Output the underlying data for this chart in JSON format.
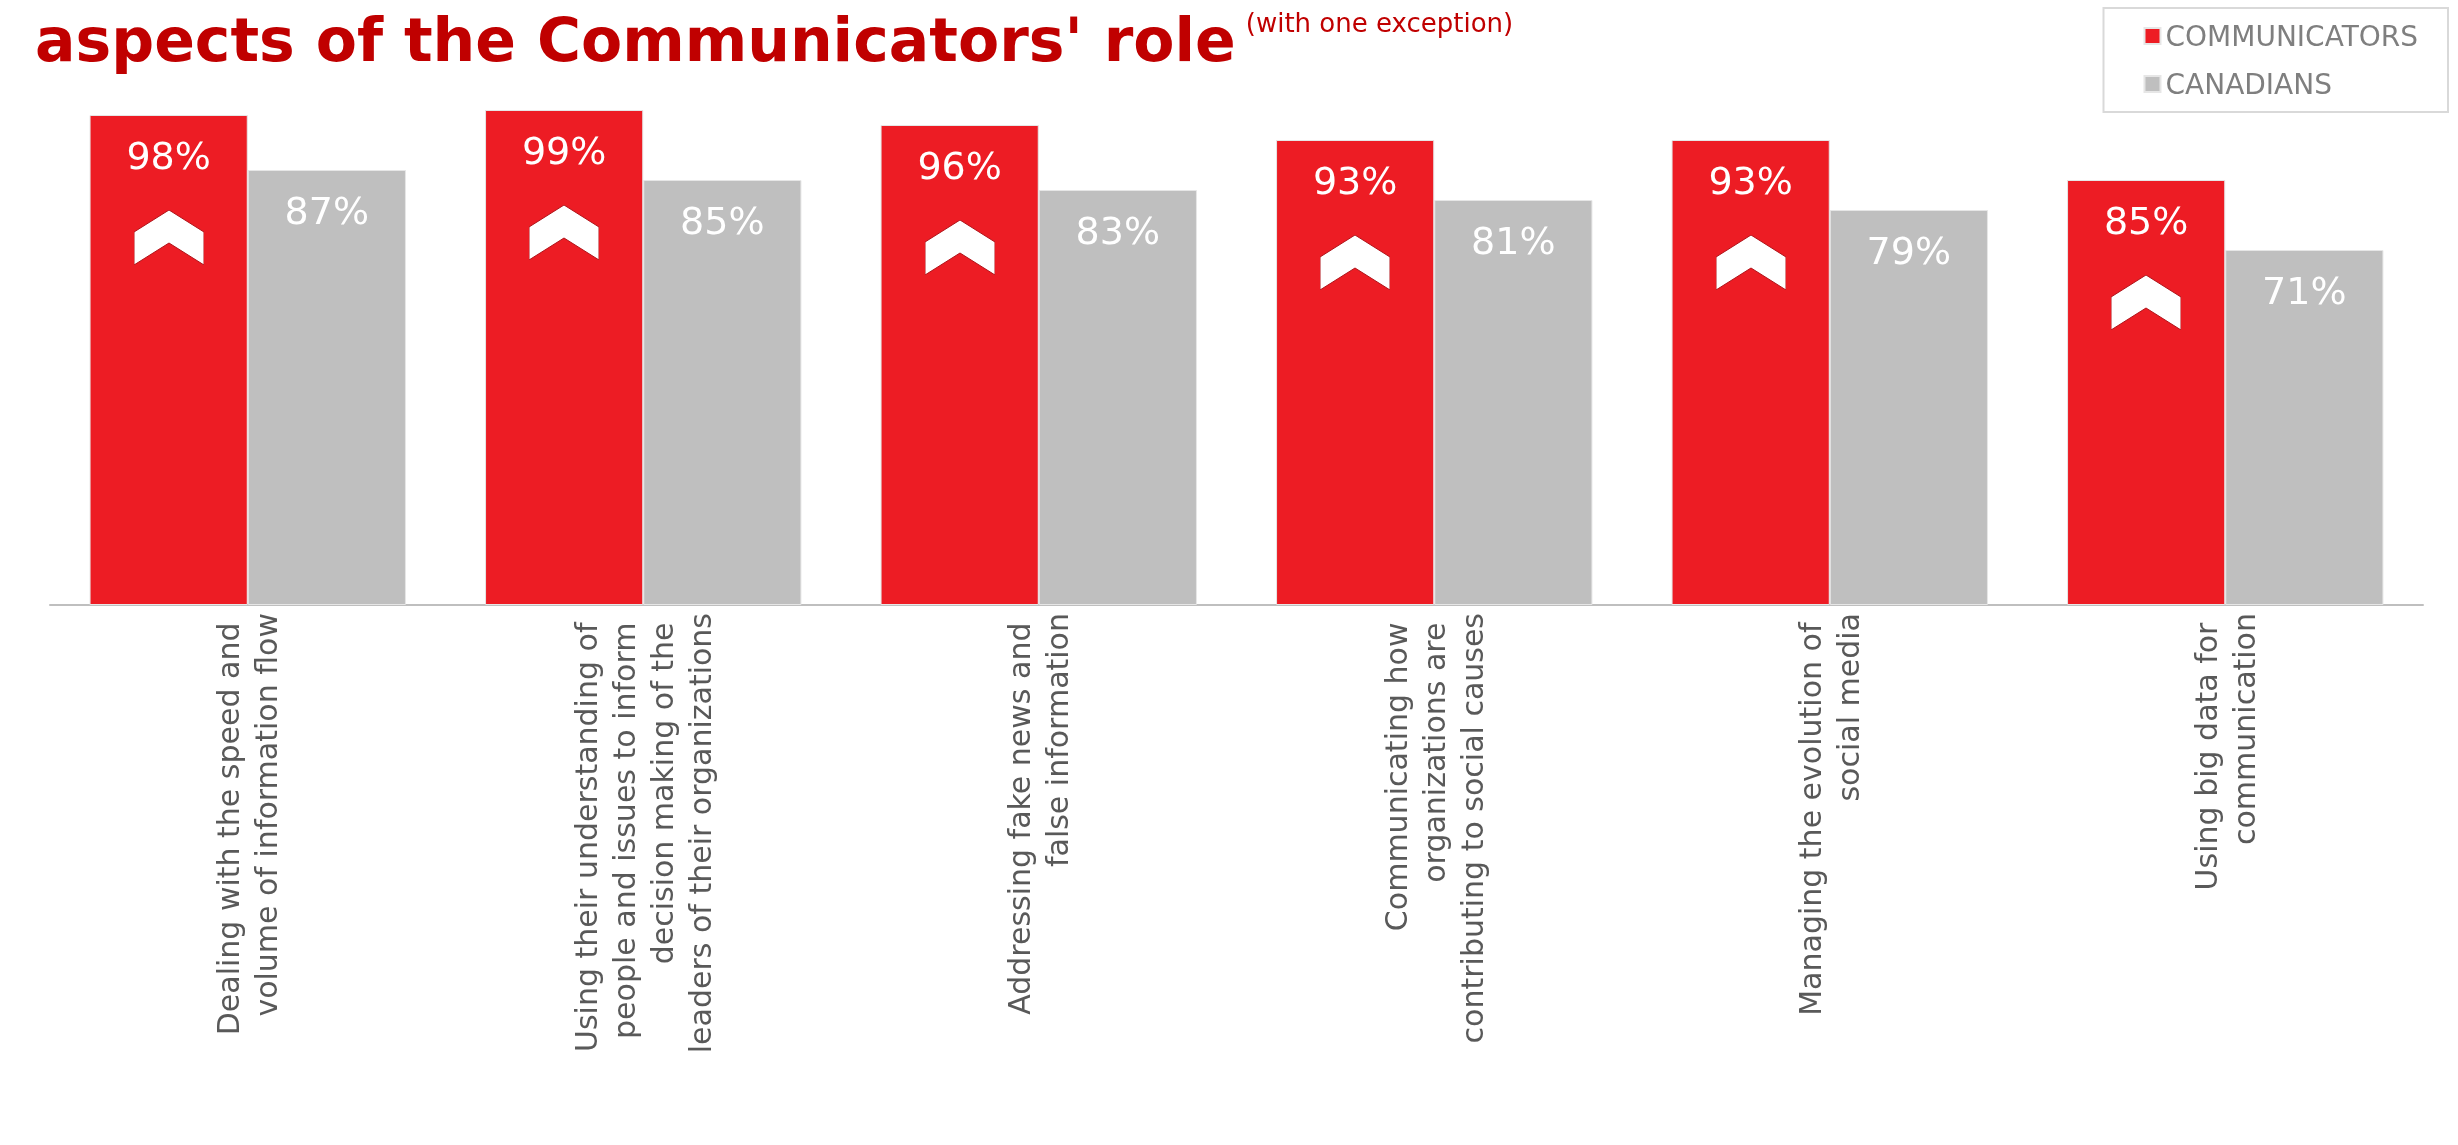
{
  "chart_data": {
    "type": "bar",
    "title": "aspects of the Communicators' role",
    "subtitle": "(with one exception)",
    "categories": [
      "Dealing with the speed and volume of information flow",
      "Using their understanding of people and issues to inform decision making of the leaders of their organizations",
      "Addressing fake news and false information",
      "Communicating how organizations are contributing to social causes",
      "Managing the evolution of social media",
      "Using big data for communication"
    ],
    "series": [
      {
        "name": "COMMUNICATORS",
        "color": "#ed1c24",
        "values": [
          98,
          99,
          96,
          93,
          93,
          85
        ],
        "value_labels": [
          "98%",
          "99%",
          "96%",
          "93%",
          "93%",
          "85%"
        ]
      },
      {
        "name": "CANADIANS",
        "color": "#bfbfbf",
        "values": [
          87,
          85,
          83,
          81,
          79,
          71
        ],
        "value_labels": [
          "87%",
          "85%",
          "83%",
          "81%",
          "79%",
          "71%"
        ]
      }
    ],
    "tick_labels": "x",
    "legend": "top right"
  }
}
